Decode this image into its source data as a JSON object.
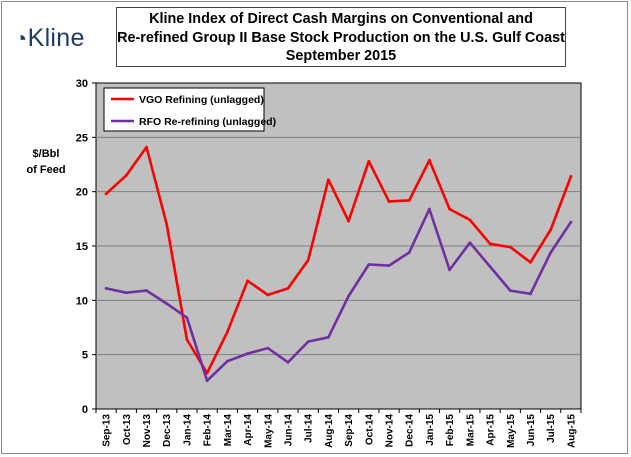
{
  "logo": {
    "mark": "◔",
    "text": "Kline"
  },
  "title_lines": [
    "Kline Index of Direct Cash Margins on Conventional and",
    "Re-refined Group II Base Stock Production on the U.S. Gulf Coast",
    "September 2015"
  ],
  "ylabel_lines": [
    "$/Bbl",
    "of Feed"
  ],
  "colors": {
    "plot_bg": "#c0c0c0",
    "vgo": "#ff0000",
    "rfo": "#7030a0",
    "grid": "#7f7f7f"
  },
  "chart_data": {
    "type": "line",
    "title": "Kline Index of Direct Cash Margins on Conventional and Re-refined Group II Base Stock Production on the U.S. Gulf Coast September 2015",
    "xlabel": "",
    "ylabel": "$/Bbl of Feed",
    "ylim": [
      0,
      30
    ],
    "yticks": [
      0,
      5,
      10,
      15,
      20,
      25,
      30
    ],
    "grid": "horizontal",
    "legend_position": "top-left",
    "categories": [
      "Sep-13",
      "Oct-13",
      "Nov-13",
      "Dec-13",
      "Jan-14",
      "Feb-14",
      "Mar-14",
      "Apr-14",
      "May-14",
      "Jun-14",
      "Jul-14",
      "Aug-14",
      "Sep-14",
      "Oct-14",
      "Nov-14",
      "Dec-14",
      "Jan-15",
      "Feb-15",
      "Mar-15",
      "Apr-15",
      "May-15",
      "Jun-15",
      "Jul-15",
      "Aug-15"
    ],
    "series": [
      {
        "name": "VGO Refining (unlagged)",
        "color": "#ff0000",
        "values": [
          19.8,
          21.5,
          24.1,
          17.0,
          6.4,
          3.3,
          7.1,
          11.8,
          10.5,
          11.1,
          13.7,
          21.1,
          17.3,
          22.8,
          19.1,
          19.2,
          22.9,
          18.4,
          17.4,
          15.2,
          14.9,
          13.5,
          16.5,
          21.4
        ]
      },
      {
        "name": "RFO Re-refining (unlagged)",
        "color": "#7030a0",
        "values": [
          11.1,
          10.7,
          10.9,
          9.7,
          8.4,
          2.6,
          4.4,
          5.1,
          5.6,
          4.3,
          6.2,
          6.6,
          10.4,
          13.3,
          13.2,
          14.4,
          18.4,
          12.8,
          15.3,
          13.1,
          10.9,
          10.6,
          14.4,
          17.2
        ]
      }
    ]
  }
}
